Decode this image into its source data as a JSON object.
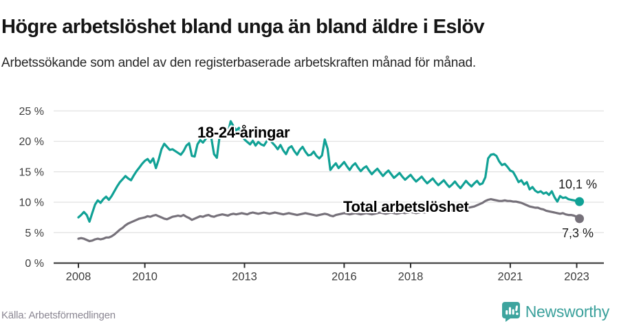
{
  "header": {
    "title": "Högre arbetslöshet bland unga än bland äldre i Eslöv",
    "subtitle": "Arbetssökande som andel av den registerbaserade arbetskraften månad för månad."
  },
  "footer": {
    "source": "Källa: Arbetsförmedlingen",
    "brand": "Newsworthy",
    "brand_icon": "newsworthy-bar-chart-bubble-icon"
  },
  "colors": {
    "youth_line": "#10a195",
    "total_line": "#76717a",
    "grid": "#e1e1e1",
    "axis": "#2d2d2d",
    "tick_label": "#3c3c3c",
    "annotation_text": "#1a1a1a",
    "brand_teal": "#3da49e"
  },
  "chart_data": {
    "type": "line",
    "title": "Högre arbetslöshet bland unga än bland äldre i Eslöv",
    "subtitle": "Arbetssökande som andel av den registerbaserade arbetskraften månad för månad.",
    "frequency": "monthly",
    "x_start": "2008-01",
    "x_end": "2023-02",
    "ylim": [
      0,
      25
    ],
    "grid": "horizontal",
    "legend_position": "inline-labels",
    "y_ticks": [
      {
        "v": 0,
        "label": "0 %"
      },
      {
        "v": 5,
        "label": "5 %"
      },
      {
        "v": 10,
        "label": "10 %"
      },
      {
        "v": 15,
        "label": "15 %"
      },
      {
        "v": 20,
        "label": "20 %"
      },
      {
        "v": 25,
        "label": "25 %"
      }
    ],
    "x_ticks": [
      {
        "v": 2008,
        "label": "2008"
      },
      {
        "v": 2010,
        "label": "2010"
      },
      {
        "v": 2013,
        "label": "2013"
      },
      {
        "v": 2016,
        "label": "2016"
      },
      {
        "v": 2018,
        "label": "2018"
      },
      {
        "v": 2021,
        "label": "2021"
      },
      {
        "v": 2023,
        "label": "2023"
      }
    ],
    "series": [
      {
        "name": "18-24-åringar",
        "color": "#10a195",
        "end_label": "10,1 %",
        "values": [
          7.5,
          7.9,
          8.4,
          7.9,
          6.8,
          8.2,
          9.6,
          10.3,
          9.9,
          10.5,
          10.9,
          10.4,
          11.0,
          11.8,
          12.6,
          13.3,
          13.8,
          14.3,
          13.9,
          13.6,
          14.4,
          15.1,
          15.7,
          16.3,
          16.8,
          17.1,
          16.5,
          17.2,
          15.6,
          17.0,
          18.7,
          19.6,
          19.1,
          18.6,
          18.7,
          18.4,
          18.1,
          17.8,
          18.4,
          19.3,
          19.7,
          17.6,
          17.5,
          19.5,
          20.2,
          19.8,
          20.4,
          21.2,
          20.6,
          17.9,
          17.3,
          20.8,
          21.2,
          20.6,
          21.4,
          23.3,
          22.5,
          21.8,
          22.2,
          21.0,
          20.3,
          19.9,
          19.5,
          20.1,
          19.3,
          19.9,
          19.5,
          19.3,
          20.0,
          20.4,
          19.8,
          19.3,
          18.7,
          19.4,
          18.5,
          17.9,
          18.9,
          19.2,
          18.4,
          17.8,
          18.6,
          19.1,
          18.3,
          17.7,
          17.8,
          18.3,
          17.6,
          17.2,
          17.7,
          20.3,
          18.8,
          15.3,
          15.9,
          16.4,
          15.6,
          16.1,
          16.6,
          15.9,
          15.3,
          16.0,
          16.4,
          15.7,
          15.1,
          15.6,
          15.9,
          15.2,
          14.6,
          15.1,
          15.5,
          14.9,
          14.3,
          14.8,
          15.2,
          14.6,
          14.0,
          14.4,
          14.8,
          14.2,
          13.7,
          14.1,
          14.5,
          13.9,
          13.4,
          13.8,
          14.2,
          13.6,
          13.1,
          13.5,
          13.9,
          13.3,
          12.8,
          13.2,
          13.6,
          13.0,
          12.5,
          12.9,
          13.4,
          12.8,
          12.3,
          12.9,
          13.5,
          13.0,
          12.6,
          13.1,
          13.5,
          12.9,
          13.1,
          14.1,
          17.2,
          17.8,
          17.9,
          17.6,
          16.7,
          16.1,
          16.3,
          15.8,
          15.2,
          15.0,
          14.2,
          13.3,
          13.6,
          12.9,
          13.3,
          12.1,
          12.5,
          11.9,
          11.6,
          11.8,
          11.4,
          11.6,
          11.2,
          11.8,
          10.8,
          10.1,
          11.0,
          10.7,
          10.8,
          10.5,
          10.4,
          10.3,
          10.2,
          10.1
        ]
      },
      {
        "name": "Total arbetslöshet",
        "color": "#76717a",
        "end_label": "7,3 %",
        "values": [
          4.0,
          4.1,
          4.0,
          3.8,
          3.6,
          3.7,
          3.9,
          4.0,
          3.9,
          4.0,
          4.2,
          4.2,
          4.4,
          4.7,
          5.1,
          5.5,
          5.8,
          6.2,
          6.5,
          6.7,
          6.9,
          7.1,
          7.3,
          7.4,
          7.5,
          7.7,
          7.6,
          7.8,
          7.9,
          7.7,
          7.5,
          7.3,
          7.2,
          7.4,
          7.6,
          7.7,
          7.8,
          7.7,
          7.9,
          7.6,
          7.4,
          7.1,
          7.3,
          7.5,
          7.7,
          7.6,
          7.8,
          7.9,
          7.7,
          7.6,
          7.8,
          7.9,
          8.0,
          7.9,
          7.8,
          8.0,
          8.1,
          8.0,
          8.1,
          8.2,
          8.1,
          8.0,
          8.2,
          8.3,
          8.2,
          8.1,
          8.2,
          8.3,
          8.2,
          8.1,
          8.2,
          8.3,
          8.2,
          8.1,
          8.0,
          8.1,
          8.2,
          8.1,
          8.0,
          7.9,
          8.0,
          8.1,
          8.2,
          8.1,
          8.0,
          7.9,
          7.8,
          7.9,
          8.0,
          8.1,
          8.0,
          7.8,
          7.7,
          7.9,
          8.0,
          8.1,
          8.2,
          8.1,
          8.0,
          8.1,
          8.2,
          8.1,
          8.0,
          8.1,
          8.2,
          8.1,
          8.0,
          8.1,
          8.2,
          8.3,
          8.2,
          8.1,
          8.2,
          8.3,
          8.2,
          8.1,
          8.2,
          8.3,
          8.2,
          8.3,
          8.4,
          8.3,
          8.2,
          8.3,
          8.4,
          8.3,
          8.4,
          8.5,
          8.4,
          8.5,
          8.6,
          8.5,
          8.6,
          8.7,
          8.6,
          8.7,
          8.8,
          8.7,
          8.8,
          8.9,
          9.0,
          9.1,
          9.2,
          9.3,
          9.5,
          9.7,
          9.9,
          10.2,
          10.4,
          10.5,
          10.4,
          10.3,
          10.2,
          10.2,
          10.3,
          10.2,
          10.2,
          10.1,
          10.1,
          10.0,
          9.9,
          9.7,
          9.5,
          9.3,
          9.2,
          9.1,
          9.1,
          8.9,
          8.8,
          8.6,
          8.5,
          8.4,
          8.3,
          8.2,
          8.1,
          8.2,
          8.0,
          7.9,
          7.9,
          7.8,
          7.6,
          7.3
        ]
      }
    ]
  }
}
